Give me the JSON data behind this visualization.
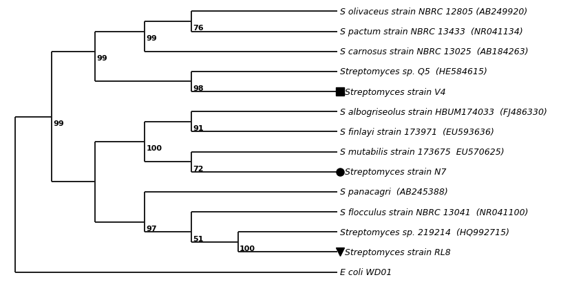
{
  "taxa": [
    {
      "name": "S olivaceus strain NBRC 12805 (AB249920)",
      "y": 13,
      "marker": null
    },
    {
      "name": "S pactum strain NBRC 13433  (NR041134)",
      "y": 12,
      "marker": null
    },
    {
      "name": "S carnosus strain NBRC 13025  (AB184263)",
      "y": 11,
      "marker": null
    },
    {
      "name": "Streptomyces sp. Q5  (HE584615)",
      "y": 10,
      "marker": null
    },
    {
      "name": "Streptomyces strain V4",
      "y": 9,
      "marker": "square"
    },
    {
      "name": "S albogriseolus strain HBUM174033  (FJ486330)",
      "y": 8,
      "marker": null
    },
    {
      "name": "S finlayi strain 173971  (EU593636)",
      "y": 7,
      "marker": null
    },
    {
      "name": "S mutabilis strain 173675  EU570625)",
      "y": 6,
      "marker": null
    },
    {
      "name": "Streptomyces strain N7",
      "y": 5,
      "marker": "circle"
    },
    {
      "name": "S panacagri  (AB245388)",
      "y": 4,
      "marker": null
    },
    {
      "name": "S flocculus strain NBRC 13041  (NR041100)",
      "y": 3,
      "marker": null
    },
    {
      "name": "Streptomyces sp. 219214  (HQ992715)",
      "y": 2,
      "marker": null
    },
    {
      "name": "Streptomyces strain RL8",
      "y": 1,
      "marker": "triangle"
    },
    {
      "name": "E coli WD01",
      "y": 0,
      "marker": null
    }
  ],
  "line_color": "#1a1a1a",
  "bg_color": "#ffffff",
  "fontsize": 9.0,
  "marker_size": 8,
  "lw": 1.4
}
